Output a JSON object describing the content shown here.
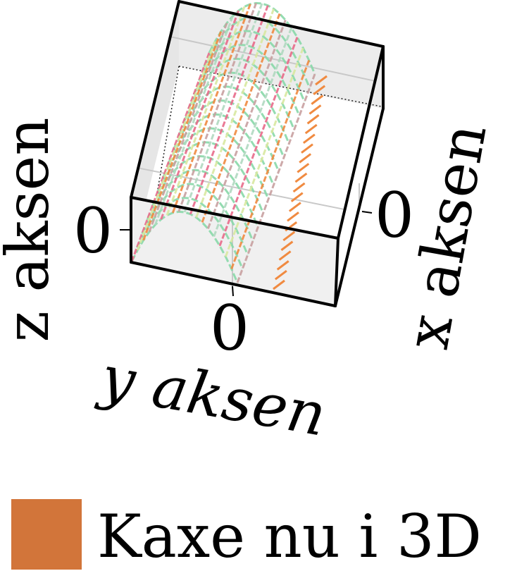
{
  "chart_data": {
    "type": "surface3d",
    "xlabel": "x aksen",
    "ylabel": "y aksen",
    "zlabel": "z aksen",
    "x_ticks": [
      "0"
    ],
    "y_ticks": [
      "0"
    ],
    "z_ticks": [
      "0"
    ],
    "grid": true,
    "legend": {
      "position": "bottom",
      "entries": [
        {
          "label": "Kaxe nu i 3D",
          "color": "#D2753A"
        }
      ]
    },
    "surface": {
      "shape": "ridge",
      "wireframe_colors": [
        "#88D8A8",
        "#E86A8A",
        "#D8E8A0",
        "#F08A40",
        "#C8A0A0",
        "#B0D8C0"
      ]
    }
  }
}
